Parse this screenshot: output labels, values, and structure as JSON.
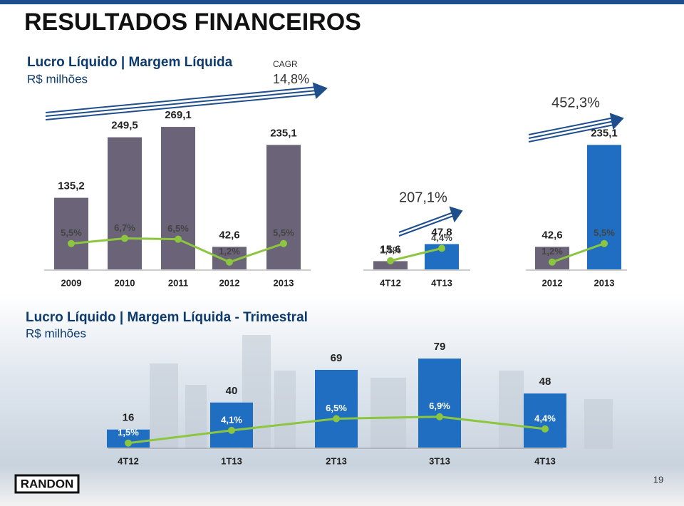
{
  "title": "RESULTADOS FINANCEIROS",
  "chart_data": [
    {
      "type": "bar",
      "title": "Lucro Líquido | Margem Líquida",
      "subtitle": "R$ milhões",
      "annotation_label": "CAGR",
      "annotation": "14,8%",
      "categories": [
        "2009",
        "2010",
        "2011",
        "2012",
        "2013"
      ],
      "series": [
        {
          "type": "bar",
          "colors": [
            "#6b6478",
            "#6b6478",
            "#6b6478",
            "#6b6478",
            "#6b6478"
          ],
          "values": [
            135.2,
            249.5,
            269.1,
            42.6,
            235.1
          ],
          "value_labels": [
            "135,2",
            "249,5",
            "269,1",
            "42,6",
            "235,1"
          ]
        },
        {
          "type": "line",
          "color": "#8cc63f",
          "values": [
            5.5,
            6.7,
            6.5,
            1.2,
            5.5
          ],
          "value_labels": [
            "5,5%",
            "6,7%",
            "6,5%",
            "1,2%",
            "5,5%"
          ]
        }
      ]
    },
    {
      "type": "bar",
      "annotation": "207,1%",
      "categories": [
        "4T12",
        "4T13"
      ],
      "series": [
        {
          "type": "bar",
          "colors": [
            "#6b6478",
            "#1f6ec1"
          ],
          "values": [
            15.6,
            47.8
          ],
          "value_labels": [
            "15,6",
            "47,8"
          ]
        },
        {
          "type": "line",
          "color": "#8cc63f",
          "values": [
            1.5,
            4.4
          ],
          "value_labels": [
            "1,5%",
            "4,4%"
          ]
        }
      ]
    },
    {
      "type": "bar",
      "annotation": "452,3%",
      "categories": [
        "2012",
        "2013"
      ],
      "series": [
        {
          "type": "bar",
          "colors": [
            "#6b6478",
            "#1f6ec1"
          ],
          "values": [
            42.6,
            235.1
          ],
          "value_labels": [
            "42,6",
            "235,1"
          ]
        },
        {
          "type": "line",
          "color": "#8cc63f",
          "values": [
            1.2,
            5.5
          ],
          "value_labels": [
            "1,2%",
            "5,5%"
          ]
        }
      ]
    },
    {
      "type": "bar",
      "title": "Lucro Líquido | Margem Líquida - Trimestral",
      "subtitle": "R$ milhões",
      "categories": [
        "4T12",
        "1T13",
        "2T13",
        "3T13",
        "4T13"
      ],
      "series": [
        {
          "type": "bar",
          "colors": [
            "#1f6ec1",
            "#1f6ec1",
            "#1f6ec1",
            "#1f6ec1",
            "#1f6ec1"
          ],
          "values": [
            16,
            40,
            69,
            79,
            48
          ]
        },
        {
          "type": "line",
          "color": "#8cc63f",
          "values": [
            1.5,
            4.1,
            6.5,
            6.9,
            4.4
          ],
          "value_labels": [
            "1,5%",
            "4,1%",
            "6,5%",
            "6,9%",
            "4,4%"
          ]
        }
      ]
    }
  ],
  "footer": {
    "logo": "RANDON",
    "page": "19"
  }
}
